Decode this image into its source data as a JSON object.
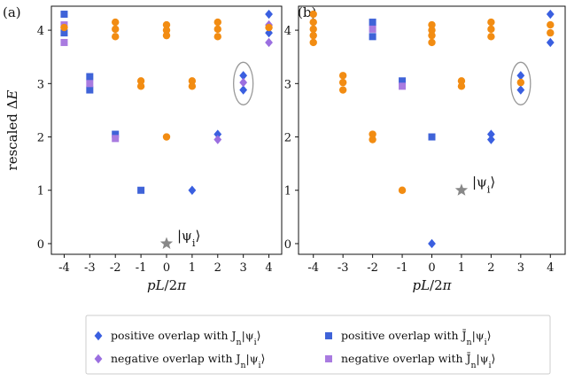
{
  "colors": {
    "positive_J": "#3a5fe0",
    "negative_J": "#9b6fe0",
    "positive_Jbar": "#3f63d8",
    "negative_Jbar": "#a97be0",
    "orange": "#f28c12",
    "star": "#888888",
    "ellipse": "#999999"
  },
  "chart_data": [
    {
      "panel": "(a)",
      "type": "scatter",
      "xlabel": "pL/2π",
      "ylabel": "rescaled ΔE",
      "xticks": [
        "-4",
        "-3",
        "-2",
        "-1",
        "0",
        "1",
        "2",
        "3",
        "4"
      ],
      "yticks": [
        "0",
        "1",
        "2",
        "3",
        "4"
      ],
      "xlim": [
        -4.5,
        4.5
      ],
      "ylim": [
        -0.2,
        4.45
      ],
      "annotation": "|ψ_i⟩",
      "star": [
        0,
        0
      ],
      "ellipse_at": [
        3,
        3
      ],
      "series": [
        {
          "marker": "square",
          "color": "positive_Jbar",
          "points": [
            [
              -4,
              4.3
            ],
            [
              -4,
              3.95
            ],
            [
              -3,
              3.13
            ],
            [
              -3,
              2.88
            ],
            [
              -2,
              2.05
            ],
            [
              -1,
              1.0
            ]
          ]
        },
        {
          "marker": "square",
          "color": "negative_Jbar",
          "points": [
            [
              -4,
              4.1
            ],
            [
              -4,
              3.77
            ],
            [
              -3,
              3.0
            ],
            [
              -2,
              1.97
            ]
          ]
        },
        {
          "marker": "diamond",
          "color": "positive_J",
          "points": [
            [
              1,
              1.0
            ],
            [
              2,
              2.05
            ],
            [
              3,
              3.15
            ],
            [
              3,
              2.88
            ],
            [
              4,
              4.3
            ],
            [
              4,
              3.95
            ]
          ]
        },
        {
          "marker": "diamond",
          "color": "negative_J",
          "points": [
            [
              2,
              1.95
            ],
            [
              3,
              3.02
            ],
            [
              4,
              4.1
            ],
            [
              4,
              3.77
            ]
          ]
        },
        {
          "marker": "circle",
          "color": "orange",
          "points": [
            [
              -4,
              4.05
            ],
            [
              -2,
              4.15
            ],
            [
              -2,
              4.02
            ],
            [
              -2,
              3.88
            ],
            [
              -1,
              3.05
            ],
            [
              -1,
              2.95
            ],
            [
              0,
              4.1
            ],
            [
              0,
              4.0
            ],
            [
              0,
              3.9
            ],
            [
              0,
              2.0
            ],
            [
              1,
              3.05
            ],
            [
              1,
              2.95
            ],
            [
              2,
              4.15
            ],
            [
              2,
              4.02
            ],
            [
              2,
              3.88
            ],
            [
              4,
              4.05
            ]
          ]
        }
      ]
    },
    {
      "panel": "(b)",
      "type": "scatter",
      "xlabel": "pL/2π",
      "xticks": [
        "-4",
        "-3",
        "-2",
        "-1",
        "0",
        "1",
        "2",
        "3",
        "4"
      ],
      "yticks": [
        "0",
        "1",
        "2",
        "3",
        "4"
      ],
      "xlim": [
        -4.5,
        4.5
      ],
      "ylim": [
        -0.2,
        4.45
      ],
      "annotation": "|ψ_i⟩",
      "star": [
        1,
        1
      ],
      "ellipse_at": [
        3,
        3
      ],
      "series": [
        {
          "marker": "square",
          "color": "positive_Jbar",
          "points": [
            [
              -2,
              4.15
            ],
            [
              -2,
              3.88
            ],
            [
              -1,
              3.05
            ],
            [
              0,
              2.0
            ]
          ]
        },
        {
          "marker": "square",
          "color": "negative_Jbar",
          "points": [
            [
              -2,
              4.02
            ],
            [
              -1,
              2.95
            ]
          ]
        },
        {
          "marker": "diamond",
          "color": "positive_J",
          "points": [
            [
              0,
              0.0
            ],
            [
              2,
              2.05
            ],
            [
              2,
              1.95
            ],
            [
              3,
              3.15
            ],
            [
              3,
              2.88
            ],
            [
              4,
              4.3
            ],
            [
              4,
              3.77
            ]
          ]
        },
        {
          "marker": "circle",
          "color": "orange",
          "points": [
            [
              -4,
              4.3
            ],
            [
              -4,
              4.15
            ],
            [
              -4,
              4.02
            ],
            [
              -4,
              3.9
            ],
            [
              -4,
              3.77
            ],
            [
              -3,
              3.15
            ],
            [
              -3,
              3.02
            ],
            [
              -3,
              2.88
            ],
            [
              -2,
              2.05
            ],
            [
              -2,
              1.95
            ],
            [
              -1,
              1.0
            ],
            [
              0,
              4.1
            ],
            [
              0,
              4.0
            ],
            [
              0,
              3.9
            ],
            [
              0,
              3.77
            ],
            [
              1,
              3.05
            ],
            [
              1,
              2.95
            ],
            [
              2,
              4.15
            ],
            [
              2,
              4.02
            ],
            [
              2,
              3.88
            ],
            [
              3,
              3.02
            ],
            [
              4,
              4.1
            ],
            [
              4,
              3.95
            ]
          ]
        }
      ]
    }
  ],
  "legend": [
    {
      "marker": "diamond",
      "color": "positive_J",
      "text": "positive overlap with J_n|ψ_i⟩"
    },
    {
      "marker": "diamond",
      "color": "negative_J",
      "text": "negative overlap with J_n|ψ_i⟩"
    },
    {
      "marker": "square",
      "color": "positive_Jbar",
      "text": "positive overlap with J̄_n|ψ_i⟩"
    },
    {
      "marker": "square",
      "color": "negative_Jbar",
      "text": "negative overlap with J̄_n|ψ_i⟩"
    }
  ]
}
